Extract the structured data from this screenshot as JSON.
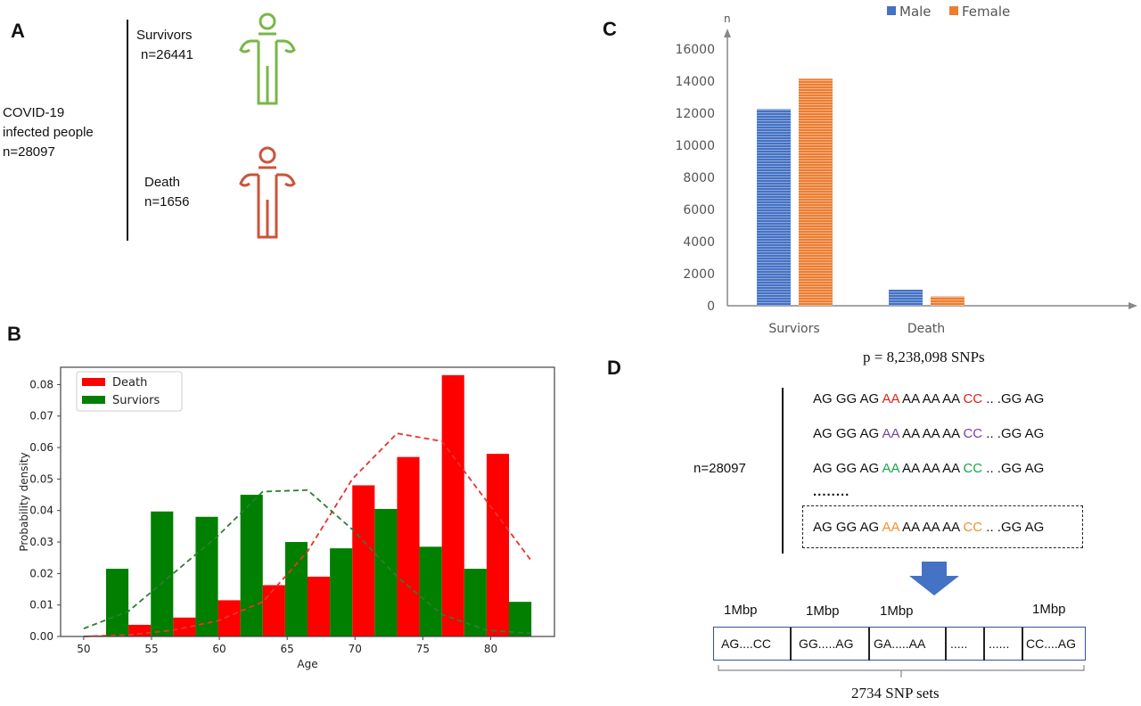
{
  "panels": {
    "A": {
      "letter": "A",
      "population": [
        "COVID-19",
        "infected people",
        "n=28097"
      ],
      "survivors": {
        "label": "Survivors",
        "n": "n=26441",
        "color": "#7ab648",
        "icon": "person-icon"
      },
      "death": {
        "label": "Death",
        "n": "n=1656",
        "color": "#c9553a",
        "icon": "person-icon"
      }
    },
    "B": {
      "letter": "B"
    },
    "C": {
      "letter": "C"
    },
    "D": {
      "letter": "D",
      "snp_count": "p = 8,238,098 SNPs",
      "n": "n=28097",
      "rows": [
        {
          "pre": "AG GG AG ",
          "hl1": "AA",
          "mid": " AA AA AA ",
          "hl2": "CC",
          "post": " .. .GG AG",
          "color": "#e0201b"
        },
        {
          "pre": "AG GG AG ",
          "hl1": "AA",
          "mid": " AA AA AA ",
          "hl2": "CC",
          "post": " .. .GG AG",
          "color": "#7b3fa0"
        },
        {
          "pre": "AG GG AG ",
          "hl1": "AA",
          "mid": " AA AA AA ",
          "hl2": "CC",
          "post": " .. .GG AG",
          "color": "#1aa34a"
        },
        {
          "pre": "AG GG AG ",
          "hl1": "AA",
          "mid": " AA AA AA ",
          "hl2": "CC",
          "post": " .. .GG AG",
          "color": "#f0902e"
        }
      ],
      "ellipsis": "........",
      "block_labels": [
        "1Mbp",
        "1Mbp",
        "1Mbp",
        "1Mbp"
      ],
      "blocks": [
        "AG....CC",
        "GG.....AG",
        "GA.....AA",
        ".....",
        "......",
        "CC....AG"
      ],
      "sets_label": "2734 SNP sets",
      "arrow_color": "#4472c4"
    }
  },
  "chart_data": [
    {
      "panel": "B",
      "type": "bar",
      "xlabel": "Age",
      "ylabel": "Probability density",
      "xlim": [
        48.3,
        84.7
      ],
      "ylim": [
        0,
        0.0855
      ],
      "xticks": [
        50,
        55,
        60,
        65,
        70,
        75,
        80
      ],
      "yticks": [
        "0.00",
        "0.01",
        "0.02",
        "0.03",
        "0.04",
        "0.05",
        "0.06",
        "0.07",
        "0.08"
      ],
      "bin_edges": [
        50,
        53.3,
        56.6,
        59.9,
        63.2,
        66.5,
        69.8,
        73.1,
        76.4,
        79.7,
        83
      ],
      "legend_position": "top-left",
      "series": [
        {
          "name": "Death",
          "color": "#ff0000",
          "values": [
            0.0003,
            0.0037,
            0.006,
            0.0115,
            0.0163,
            0.019,
            0.048,
            0.057,
            0.083,
            0.058
          ],
          "density_curve": {
            "x": [
              50,
              53.3,
              56.6,
              59.9,
              63.2,
              66.5,
              69.8,
              73.1,
              76.4,
              79.7,
              83
            ],
            "y": [
              0.0,
              0.0005,
              0.002,
              0.005,
              0.011,
              0.027,
              0.05,
              0.0645,
              0.062,
              0.043,
              0.024
            ]
          }
        },
        {
          "name": "Surviors",
          "color": "#007f00",
          "values": [
            0.0215,
            0.0397,
            0.038,
            0.045,
            0.03,
            0.028,
            0.0405,
            0.0285,
            0.0215,
            0.011
          ],
          "density_curve": {
            "x": [
              50,
              53.3,
              56.6,
              59.9,
              63.2,
              66.5,
              69.8,
              73.1,
              76.4,
              79.7,
              83
            ],
            "y": [
              0.0025,
              0.008,
              0.02,
              0.032,
              0.046,
              0.0465,
              0.034,
              0.019,
              0.007,
              0.002,
              0.001
            ]
          }
        }
      ]
    },
    {
      "panel": "C",
      "type": "bar",
      "ylabel": "n",
      "categories": [
        "Surviors",
        "Death"
      ],
      "ylim": [
        0,
        16000
      ],
      "yticks": [
        "0",
        "2000",
        "4000",
        "6000",
        "8000",
        "10000",
        "12000",
        "14000",
        "16000"
      ],
      "legend_position": "top",
      "series": [
        {
          "name": "Male",
          "color": "#4472c4",
          "values": [
            12250,
            1000
          ]
        },
        {
          "name": "Female",
          "color": "#ed7d31",
          "values": [
            14150,
            580
          ]
        }
      ]
    }
  ]
}
